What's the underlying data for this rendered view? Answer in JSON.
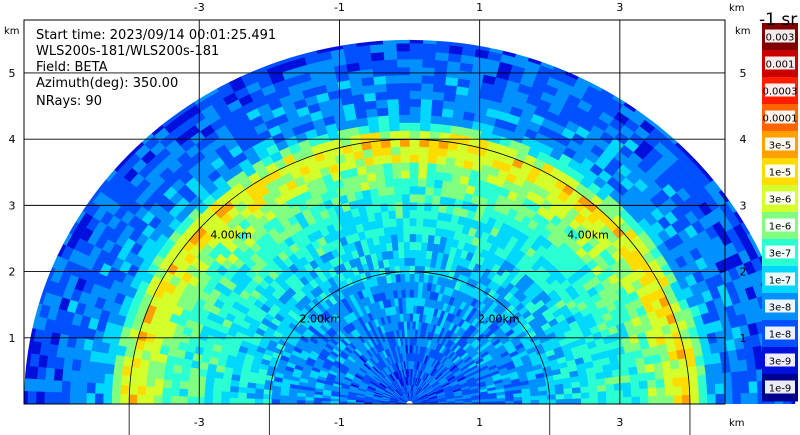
{
  "info": {
    "start_time": "Start time: 2023/09/14 00:01:25.491",
    "instrument": "WLS200s-181/WLS200s-181",
    "field": "Field: BETA",
    "azimuth": "Azimuth(deg): 350.00",
    "nrays": "NRays: 90"
  },
  "units_label": "-1 sr",
  "chart_data": {
    "type": "heatmap",
    "title": "",
    "xlabel": "km",
    "ylabel": "km",
    "xlim": [
      -5.5,
      4.5
    ],
    "ylim": [
      0,
      5.8
    ],
    "x_ticks": [
      -3,
      -1,
      1,
      3
    ],
    "y_ticks": [
      1,
      2,
      3,
      4,
      5
    ],
    "grid": true,
    "range_rings": [
      {
        "radius_km": 2,
        "label": "2.00km"
      },
      {
        "radius_km": 4,
        "label": "4.00km"
      }
    ],
    "colorbar": {
      "levels": [
        "0.003",
        "0.001",
        "0.0003",
        "0.0001",
        "3e-5",
        "1e-5",
        "3e-6",
        "1e-6",
        "3e-7",
        "1e-7",
        "3e-8",
        "1e-8",
        "3e-9",
        "1e-9"
      ],
      "colors": [
        "#800000",
        "#c80000",
        "#ff1e00",
        "#ff6400",
        "#ffa000",
        "#ffdc00",
        "#d4ff2a",
        "#80ff80",
        "#2affd4",
        "#00d8ff",
        "#0090ff",
        "#0050ff",
        "#0010dc",
        "#000090"
      ]
    },
    "beta_profile": [
      {
        "range_km": 0.1,
        "level": "1e-8"
      },
      {
        "range_km": 1.5,
        "level": "3e-8"
      },
      {
        "range_km": 2.2,
        "level": "1e-7"
      },
      {
        "range_km": 3.0,
        "level": "3e-7"
      },
      {
        "range_km": 3.5,
        "level": "1e-6"
      },
      {
        "range_km": 3.9,
        "level": "1e-5"
      },
      {
        "range_km": 4.3,
        "level": "3e-8"
      },
      {
        "range_km": 5.5,
        "level": "1e-8"
      }
    ]
  }
}
